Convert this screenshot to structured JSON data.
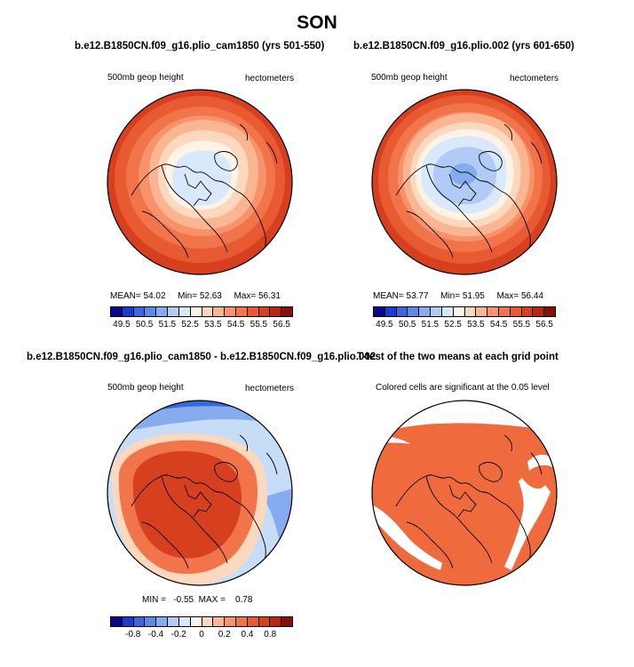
{
  "figure": {
    "title": "SON"
  },
  "panels": [
    {
      "title": "b.e12.B1850CN.f09_g16.plio_cam1850 (yrs 501-550)",
      "left_label": "500mb geop height",
      "right_label": "hectometers",
      "stats": {
        "mean_label": "MEAN=",
        "mean": "54.02",
        "min_label": "Min=",
        "min": "52.63",
        "max_label": "Max=",
        "max": "56.31"
      }
    },
    {
      "title": "b.e12.B1850CN.f09_g16.plio.002 (yrs 601-650)",
      "left_label": "500mb geop height",
      "right_label": "hectometers",
      "stats": {
        "mean_label": "MEAN=",
        "mean": "53.77",
        "min_label": "Min=",
        "min": "51.95",
        "max_label": "Max=",
        "max": "56.44"
      }
    },
    {
      "title": "b.e12.B1850CN.f09_g16.plio_cam1850 - b.e12.B1850CN.f09_g16.plio.002",
      "left_label": "500mb geop height",
      "right_label": "hectometers",
      "stats_text": "MIN =   -0.55  MAX =    0.78"
    },
    {
      "title": "T-test of the two means at each grid point",
      "left_label": "Colored cells are significant at the 0.05 level",
      "right_label": ""
    }
  ],
  "colorbars": {
    "absolute": {
      "colors": [
        "#08088f",
        "#1a3cc8",
        "#3a66e0",
        "#5a8ae8",
        "#86abef",
        "#b0cbf5",
        "#dae8fb",
        "#fdf3e6",
        "#fcd8bf",
        "#fab592",
        "#f7926a",
        "#f2744a",
        "#e85a32",
        "#d6401e",
        "#b52812",
        "#8a1006"
      ],
      "ticks": [
        "49.5",
        "50.5",
        "51.5",
        "52.5",
        "53.5",
        "54.5",
        "55.5",
        "56.5"
      ]
    },
    "difference": {
      "colors": [
        "#08088f",
        "#1a3cc8",
        "#3a66e0",
        "#5a8ae8",
        "#86abef",
        "#b0cbf5",
        "#dae8fb",
        "#fdf3e6",
        "#fcd8bf",
        "#fab592",
        "#f7926a",
        "#f2744a",
        "#e85a32",
        "#d6401e",
        "#b52812",
        "#8a1006"
      ],
      "ticks": [
        "-0.8",
        "-0.4",
        "-0.2",
        "0",
        "0.2",
        "0.4",
        "0.8"
      ]
    }
  },
  "map_colors": {
    "ring1": "#d6401e",
    "ring2": "#e85a32",
    "ring3": "#f2744a",
    "ring4": "#f7926a",
    "ring5": "#fab592",
    "ring6": "#fcd8bf",
    "ring7": "#fdf3e6",
    "low1": "#dae8fb",
    "low2": "#b0cbf5",
    "low3": "#86abef",
    "diff_blue_dark": "#3a66e0",
    "diff_blue": "#86abef",
    "diff_blue_light": "#c6dcf7",
    "diff_pale": "#fcd8bf",
    "diff_mid": "#f2744a",
    "diff_hot": "#d6401e",
    "sig": "#ef6a3c",
    "coast": "#000000"
  },
  "chart_data": [
    {
      "type": "heatmap",
      "projection": "north-polar-stereographic",
      "title": "b.e12.B1850CN.f09_g16.plio_cam1850 (yrs 501-550)",
      "variable": "500mb geop height",
      "units": "hectometers",
      "mean": 54.02,
      "min": 52.63,
      "max": 56.31,
      "levels": [
        49.5,
        50.5,
        51.5,
        52.5,
        53.5,
        54.5,
        55.5,
        56.5
      ]
    },
    {
      "type": "heatmap",
      "projection": "north-polar-stereographic",
      "title": "b.e12.B1850CN.f09_g16.plio.002 (yrs 601-650)",
      "variable": "500mb geop height",
      "units": "hectometers",
      "mean": 53.77,
      "min": 51.95,
      "max": 56.44,
      "levels": [
        49.5,
        50.5,
        51.5,
        52.5,
        53.5,
        54.5,
        55.5,
        56.5
      ]
    },
    {
      "type": "heatmap",
      "projection": "north-polar-stereographic",
      "title": "b.e12.B1850CN.f09_g16.plio_cam1850 - b.e12.B1850CN.f09_g16.plio.002",
      "variable": "500mb geop height",
      "units": "hectometers",
      "min": -0.55,
      "max": 0.78,
      "levels": [
        -0.8,
        -0.4,
        -0.2,
        0,
        0.2,
        0.4,
        0.8
      ]
    },
    {
      "type": "heatmap",
      "projection": "north-polar-stereographic",
      "title": "T-test of the two means at each grid point",
      "note": "Colored cells are significant at the 0.05 level",
      "significance_level": 0.05
    }
  ]
}
